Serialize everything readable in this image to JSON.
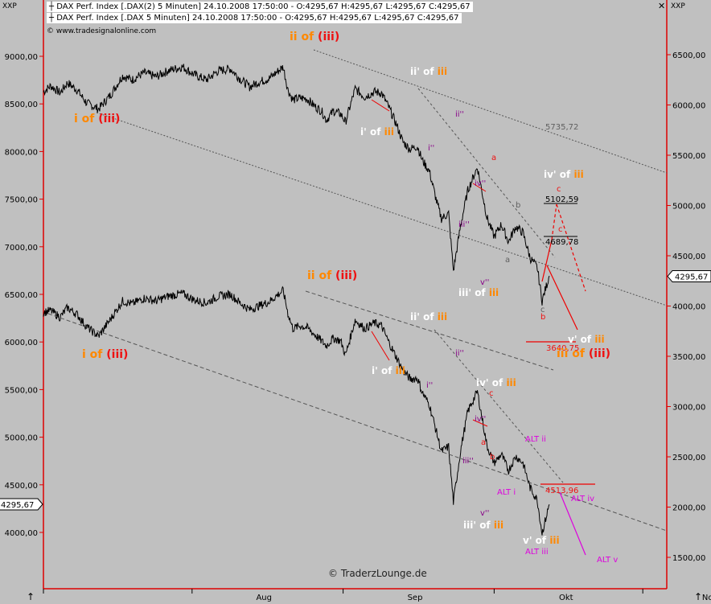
{
  "header": {
    "left_axis_name": "XXP",
    "right_axis_name": "XXP",
    "legend_line_1": "DAX Perf. Index [.DAX(2)  5 Minuten] 24.10.2008 17:50:00 - O:4295,67 H:4295,67 L:4295,67 C:4295,67",
    "legend_line_2": "DAX Perf. Index [.DAX  5 Minuten] 24.10.2008 17:50:00 - O:4295,67 H:4295,67 L:4295,67 C:4295,67",
    "source_note": "© www.tradesignalonline.com",
    "watermark": "© TraderzLounge.de"
  },
  "colors": {
    "background": "#c0c0c0",
    "axis_red": "#dd0000",
    "orange": "#ff8800",
    "red_label": "#ee1111",
    "magenta": "#dd00dd",
    "purple": "#880088",
    "white": "#ffffff",
    "price": "#000000"
  },
  "chart_data": {
    "type": "line",
    "title": "DAX Perf. Index (5 Minuten)",
    "xlabel": "",
    "ylabel": "",
    "x_ticks": [
      "Aug",
      "Sep",
      "Okt",
      "Nov"
    ],
    "left_axis": {
      "ticks": [
        "9000,00",
        "8500,00",
        "8000,00",
        "7500,00",
        "7000,00",
        "6500,00",
        "6000,00",
        "5500,00",
        "5000,00",
        "4500,00",
        "4000,00"
      ],
      "ylim": [
        3500,
        9700
      ],
      "current_value": "4295,67"
    },
    "right_axis": {
      "ticks": [
        "6500,00",
        "6000,00",
        "5500,00",
        "5000,00",
        "4500,00",
        "4000,00",
        "3500,00",
        "3000,00",
        "2500,00",
        "2000,00",
        "1500,00"
      ],
      "ylim": [
        1100,
        6950
      ],
      "current_value": "4295,67"
    },
    "series": [
      {
        "name": "DAX Perf. Index [.DAX(2)  5 Minuten]",
        "axis": "right",
        "points": [
          [
            0,
            6130
          ],
          [
            3,
            6190
          ],
          [
            7,
            6120
          ],
          [
            10,
            6220
          ],
          [
            14,
            6150
          ],
          [
            18,
            6020
          ],
          [
            23,
            5960
          ],
          [
            28,
            6100
          ],
          [
            33,
            6290
          ],
          [
            37,
            6250
          ],
          [
            42,
            6320
          ],
          [
            47,
            6280
          ],
          [
            52,
            6340
          ],
          [
            58,
            6380
          ],
          [
            63,
            6300
          ],
          [
            68,
            6250
          ],
          [
            73,
            6340
          ],
          [
            78,
            6360
          ],
          [
            82,
            6260
          ],
          [
            86,
            6180
          ],
          [
            90,
            6230
          ],
          [
            94,
            6260
          ],
          [
            97,
            6320
          ],
          [
            100,
            6380
          ],
          [
            102,
            6150
          ],
          [
            104,
            6050
          ],
          [
            107,
            6070
          ],
          [
            110,
            6060
          ],
          [
            113,
            5990
          ],
          [
            116,
            5940
          ],
          [
            118,
            5850
          ],
          [
            121,
            5940
          ],
          [
            124,
            5910
          ],
          [
            126,
            5830
          ],
          [
            130,
            6160
          ],
          [
            134,
            6080
          ],
          [
            138,
            6130
          ],
          [
            141,
            6120
          ],
          [
            144,
            5980
          ],
          [
            147,
            5820
          ],
          [
            150,
            5630
          ],
          [
            153,
            5560
          ],
          [
            156,
            5590
          ],
          [
            158,
            5450
          ],
          [
            161,
            5340
          ],
          [
            164,
            5040
          ],
          [
            166,
            4870
          ],
          [
            169,
            4920
          ],
          [
            171,
            4350
          ],
          [
            174,
            4800
          ],
          [
            177,
            5150
          ],
          [
            181,
            5380
          ],
          [
            185,
            4880
          ],
          [
            188,
            4690
          ],
          [
            191,
            4810
          ],
          [
            194,
            4640
          ],
          [
            197,
            4790
          ],
          [
            200,
            4730
          ],
          [
            203,
            4480
          ],
          [
            206,
            4380
          ],
          [
            208,
            4050
          ],
          [
            211,
            4300
          ]
        ],
        "values_note": "approximate trace of the upper price panel"
      },
      {
        "name": "DAX Perf. Index [.DAX  5 Minuten]",
        "axis": "left",
        "points": [
          [
            0,
            6310
          ],
          [
            3,
            6330
          ],
          [
            7,
            6260
          ],
          [
            10,
            6360
          ],
          [
            14,
            6290
          ],
          [
            18,
            6160
          ],
          [
            23,
            6060
          ],
          [
            28,
            6240
          ],
          [
            33,
            6430
          ],
          [
            37,
            6400
          ],
          [
            42,
            6460
          ],
          [
            47,
            6430
          ],
          [
            52,
            6480
          ],
          [
            58,
            6510
          ],
          [
            63,
            6440
          ],
          [
            68,
            6410
          ],
          [
            73,
            6480
          ],
          [
            78,
            6500
          ],
          [
            82,
            6410
          ],
          [
            86,
            6340
          ],
          [
            90,
            6380
          ],
          [
            94,
            6420
          ],
          [
            97,
            6480
          ],
          [
            100,
            6540
          ],
          [
            102,
            6300
          ],
          [
            104,
            6140
          ],
          [
            107,
            6170
          ],
          [
            110,
            6150
          ],
          [
            113,
            6080
          ],
          [
            116,
            6010
          ],
          [
            118,
            5960
          ],
          [
            121,
            6040
          ],
          [
            124,
            6010
          ],
          [
            126,
            5860
          ],
          [
            130,
            6230
          ],
          [
            134,
            6140
          ],
          [
            138,
            6200
          ],
          [
            141,
            6170
          ],
          [
            144,
            6000
          ],
          [
            147,
            5850
          ],
          [
            150,
            5700
          ],
          [
            153,
            5610
          ],
          [
            156,
            5620
          ],
          [
            158,
            5470
          ],
          [
            161,
            5340
          ],
          [
            164,
            5050
          ],
          [
            166,
            4850
          ],
          [
            169,
            4900
          ],
          [
            171,
            4320
          ],
          [
            174,
            4860
          ],
          [
            177,
            5270
          ],
          [
            181,
            5480
          ],
          [
            185,
            4910
          ],
          [
            188,
            4730
          ],
          [
            191,
            4820
          ],
          [
            194,
            4650
          ],
          [
            197,
            4800
          ],
          [
            200,
            4730
          ],
          [
            203,
            4470
          ],
          [
            206,
            4340
          ],
          [
            208,
            3990
          ],
          [
            211,
            4295
          ]
        ],
        "values_note": "approximate trace of the lower price panel"
      }
    ],
    "annotations": [
      {
        "panel": "upper",
        "text": "ii of",
        "text2": "(iii)"
      },
      {
        "panel": "upper",
        "text": "i of",
        "text2": "(iii)"
      },
      {
        "panel": "upper",
        "text": "ii' of",
        "text2": "iii"
      },
      {
        "panel": "upper",
        "text": "i' of",
        "text2": "iii"
      },
      {
        "panel": "upper",
        "text": "ii''"
      },
      {
        "panel": "upper",
        "text": "i''"
      },
      {
        "panel": "upper",
        "text": "a"
      },
      {
        "panel": "upper",
        "text": "iv''"
      },
      {
        "panel": "upper",
        "text": "iii''"
      },
      {
        "panel": "upper",
        "text": "v''"
      },
      {
        "panel": "upper",
        "text": "iii' of",
        "text2": "iii"
      },
      {
        "panel": "upper",
        "text": "b"
      },
      {
        "panel": "upper",
        "text": "a"
      },
      {
        "panel": "upper",
        "text": "c"
      },
      {
        "panel": "upper",
        "text": "b"
      },
      {
        "panel": "upper",
        "text": "iv' of",
        "text2": "iii"
      },
      {
        "panel": "upper",
        "text": "c"
      },
      {
        "panel": "upper",
        "text": "c"
      },
      {
        "panel": "upper",
        "text": "5102,59"
      },
      {
        "panel": "upper",
        "text": "4689,78"
      },
      {
        "panel": "upper",
        "text": "5735,72"
      },
      {
        "panel": "upper",
        "text": "v' of",
        "text2": "iii"
      },
      {
        "panel": "upper",
        "text": "3640,75"
      },
      {
        "panel": "upper",
        "text": "iii of",
        "text2": "(iii)"
      },
      {
        "panel": "lower",
        "text": "ii of",
        "text2": "(iii)"
      },
      {
        "panel": "lower",
        "text": "i of",
        "text2": "(iii)"
      },
      {
        "panel": "lower",
        "text": "ii' of",
        "text2": "iii"
      },
      {
        "panel": "lower",
        "text": "i' of",
        "text2": "iii"
      },
      {
        "panel": "lower",
        "text": "ii''"
      },
      {
        "panel": "lower",
        "text": "i''"
      },
      {
        "panel": "lower",
        "text": "iv' of",
        "text2": "iii"
      },
      {
        "panel": "lower",
        "text": "c"
      },
      {
        "panel": "lower",
        "text": "iv''"
      },
      {
        "panel": "lower",
        "text": "a"
      },
      {
        "panel": "lower",
        "text": "b"
      },
      {
        "panel": "lower",
        "text": "iii''"
      },
      {
        "panel": "lower",
        "text": "v''"
      },
      {
        "panel": "lower",
        "text": "iii' of",
        "text2": "iii"
      },
      {
        "panel": "lower",
        "text": "ALT ii"
      },
      {
        "panel": "lower",
        "text": "ALT i"
      },
      {
        "panel": "lower",
        "text": "4513,96"
      },
      {
        "panel": "lower",
        "text": "ALT iv"
      },
      {
        "panel": "lower",
        "text": "v' of",
        "text2": "iii"
      },
      {
        "panel": "lower",
        "text": "ALT iii"
      },
      {
        "panel": "lower",
        "text": "ALT v"
      }
    ]
  }
}
